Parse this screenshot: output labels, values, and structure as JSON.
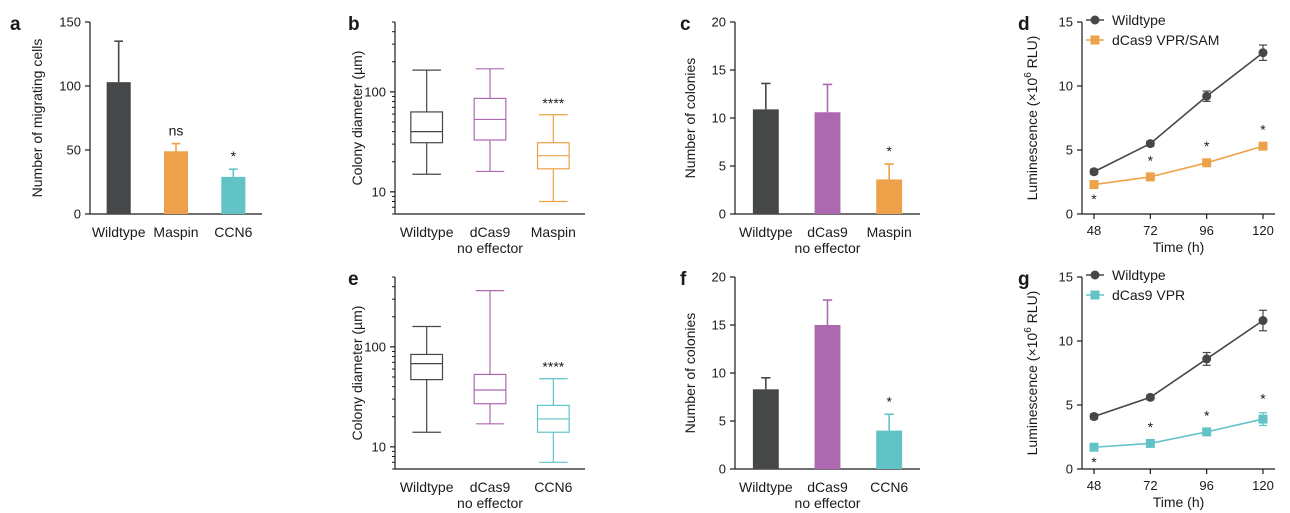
{
  "colors": {
    "wildtype": "#454749",
    "maspin": "#eda24a",
    "ccn6": "#62c3c7",
    "dcas9": "#ad69b0",
    "axis": "#1a1a1a"
  },
  "chart_data": [
    {
      "panel": "a",
      "type": "bar",
      "categories": [
        "Wildtype",
        "Maspin",
        "CCN6"
      ],
      "values": [
        103,
        49,
        29
      ],
      "errors": [
        32,
        6,
        6
      ],
      "significance": [
        "",
        "ns",
        "*"
      ],
      "ylabel": "Number of migrating cells",
      "ylim": [
        0,
        150
      ],
      "yticks": [
        0,
        50,
        100,
        150
      ],
      "colors": [
        "#454749",
        "#eda24a",
        "#62c3c7"
      ]
    },
    {
      "panel": "b",
      "type": "box",
      "categories": [
        "Wildtype",
        "dCas9\nno effector",
        "Maspin"
      ],
      "boxes": [
        {
          "min": 15,
          "q1": 31,
          "median": 40,
          "q3": 63,
          "max": 165
        },
        {
          "min": 16,
          "q1": 33,
          "median": 53,
          "q3": 86,
          "max": 170
        },
        {
          "min": 8,
          "q1": 17,
          "median": 23,
          "q3": 31,
          "max": 59
        }
      ],
      "significance": [
        "",
        "",
        "****"
      ],
      "ylabel": "Colony diameter (µm)",
      "yscale": "log",
      "ylim": [
        6,
        500
      ],
      "yticks": [
        10,
        100
      ],
      "colors": [
        "#454749",
        "#ad69b0",
        "#eda24a"
      ]
    },
    {
      "panel": "c",
      "type": "bar",
      "categories": [
        "Wildtype",
        "dCas9\nno effector",
        "Maspin"
      ],
      "values": [
        10.9,
        10.6,
        3.6
      ],
      "errors": [
        2.7,
        2.9,
        1.6
      ],
      "significance": [
        "",
        "",
        "*"
      ],
      "ylabel": "Number of colonies",
      "ylim": [
        0,
        20
      ],
      "yticks": [
        0,
        5,
        10,
        15,
        20
      ],
      "colors": [
        "#454749",
        "#ad69b0",
        "#eda24a"
      ]
    },
    {
      "panel": "d",
      "type": "line",
      "x": [
        48,
        72,
        96,
        120
      ],
      "series": [
        {
          "name": "Wildtype",
          "values": [
            3.3,
            5.5,
            9.2,
            12.6
          ],
          "errors": [
            0.2,
            0.2,
            0.4,
            0.6
          ],
          "marker": "circle",
          "color": "#454749"
        },
        {
          "name": "dCas9 VPR/SAM",
          "values": [
            2.3,
            2.9,
            4.0,
            5.3
          ],
          "errors": [
            0.2,
            0.2,
            0.2,
            0.2
          ],
          "marker": "square",
          "color": "#eda24a"
        }
      ],
      "significance": [
        "*",
        "*",
        "*",
        "*"
      ],
      "xlabel": "Time (h)",
      "ylabel_pre": "Luminescence  (×10",
      "ylabel_sup": "6",
      "ylabel_post": " RLU)",
      "xlim": [
        48,
        120
      ],
      "ylim": [
        0,
        15
      ],
      "yticks": [
        0,
        5,
        10,
        15
      ]
    },
    {
      "panel": "e",
      "type": "box",
      "categories": [
        "Wildtype",
        "dCas9\nno effector",
        "CCN6"
      ],
      "boxes": [
        {
          "min": 14,
          "q1": 47,
          "median": 68,
          "q3": 84,
          "max": 160
        },
        {
          "min": 17,
          "q1": 27,
          "median": 37,
          "q3": 53,
          "max": 365
        },
        {
          "min": 7,
          "q1": 14,
          "median": 19,
          "q3": 26,
          "max": 48
        }
      ],
      "significance": [
        "",
        "",
        "****"
      ],
      "ylabel": "Colony diameter (µm)",
      "yscale": "log",
      "ylim": [
        6,
        500
      ],
      "yticks": [
        10,
        100
      ],
      "colors": [
        "#454749",
        "#ad69b0",
        "#62c3c7"
      ]
    },
    {
      "panel": "f",
      "type": "bar",
      "categories": [
        "Wildtype",
        "dCas9\nno effector",
        "CCN6"
      ],
      "values": [
        8.3,
        15.0,
        4.0
      ],
      "errors": [
        1.2,
        2.6,
        1.7
      ],
      "significance": [
        "",
        "",
        "*"
      ],
      "ylabel": "Number of colonies",
      "ylim": [
        0,
        20
      ],
      "yticks": [
        0,
        5,
        10,
        15,
        20
      ],
      "colors": [
        "#454749",
        "#ad69b0",
        "#62c3c7"
      ]
    },
    {
      "panel": "g",
      "type": "line",
      "x": [
        48,
        72,
        96,
        120
      ],
      "series": [
        {
          "name": "Wildtype",
          "values": [
            4.1,
            5.6,
            8.6,
            11.6
          ],
          "errors": [
            0.2,
            0.2,
            0.5,
            0.8
          ],
          "marker": "circle",
          "color": "#454749"
        },
        {
          "name": "dCas9 VPR",
          "values": [
            1.7,
            2.0,
            2.9,
            3.9
          ],
          "errors": [
            0.2,
            0.2,
            0.2,
            0.5
          ],
          "marker": "square",
          "color": "#62c3c7"
        }
      ],
      "significance": [
        "*",
        "*",
        "*",
        "*"
      ],
      "xlabel": "Time (h)",
      "ylabel_pre": "Luminescence  (×10",
      "ylabel_sup": "6",
      "ylabel_post": " RLU)",
      "xlim": [
        48,
        120
      ],
      "ylim": [
        0,
        15
      ],
      "yticks": [
        0,
        5,
        10,
        15
      ]
    }
  ]
}
